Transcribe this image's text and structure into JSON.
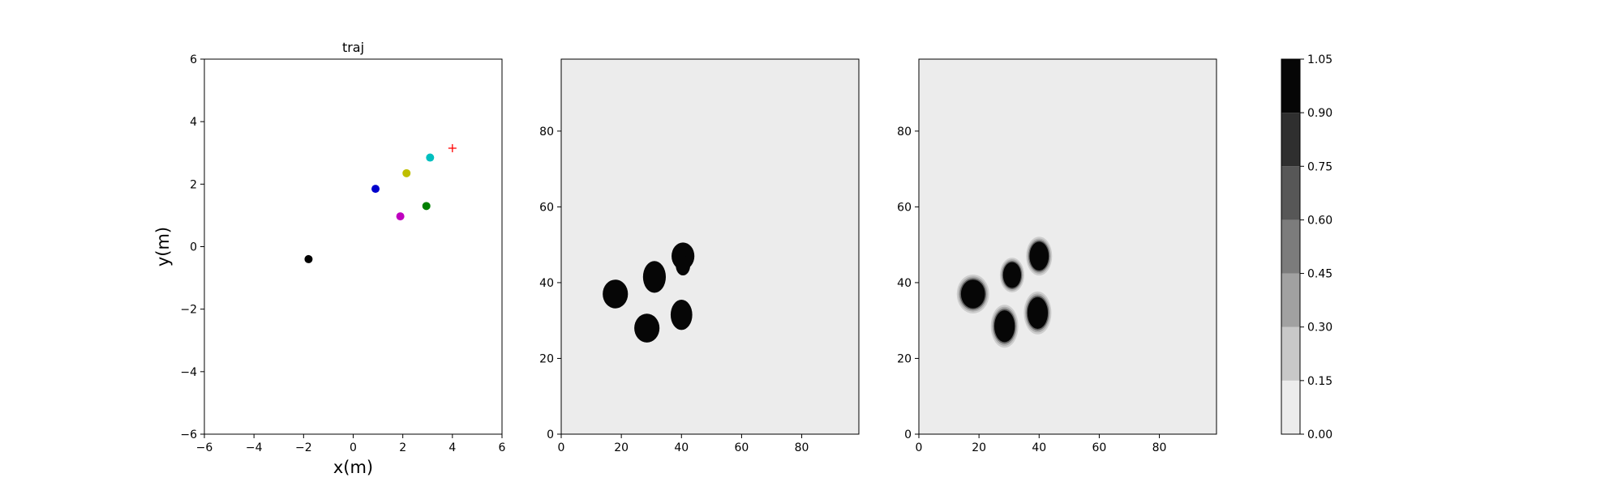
{
  "chart_data": [
    {
      "type": "scatter",
      "title": "traj",
      "xlabel": "x(m)",
      "ylabel": "y(m)",
      "xlim": [
        -6,
        6
      ],
      "ylim": [
        -6,
        6
      ],
      "xticks": [
        -6,
        -4,
        -2,
        0,
        2,
        4,
        6
      ],
      "yticks": [
        -6,
        -4,
        -2,
        0,
        2,
        4,
        6
      ],
      "xtick_labels": [
        "−6",
        "−4",
        "−2",
        "0",
        "2",
        "4",
        "6"
      ],
      "ytick_labels": [
        "−6",
        "−4",
        "−2",
        "0",
        "2",
        "4",
        "6"
      ],
      "grid": false,
      "points": [
        {
          "x": -1.8,
          "y": -0.4,
          "color": "#000000",
          "marker": "circle"
        },
        {
          "x": 0.9,
          "y": 1.85,
          "color": "#0000cc",
          "marker": "circle"
        },
        {
          "x": 2.15,
          "y": 2.35,
          "color": "#bfbf00",
          "marker": "circle"
        },
        {
          "x": 3.1,
          "y": 2.85,
          "color": "#00bfbf",
          "marker": "circle"
        },
        {
          "x": 1.9,
          "y": 0.97,
          "color": "#bf00bf",
          "marker": "circle"
        },
        {
          "x": 2.95,
          "y": 1.3,
          "color": "#008000",
          "marker": "circle"
        },
        {
          "x": 4.0,
          "y": 3.15,
          "color": "#ff0000",
          "marker": "plus"
        }
      ]
    },
    {
      "type": "heatmap",
      "title": "",
      "xlim": [
        0,
        99
      ],
      "ylim": [
        0,
        99
      ],
      "xticks": [
        0,
        20,
        40,
        60,
        80
      ],
      "yticks": [
        0,
        20,
        40,
        60,
        80
      ],
      "xtick_labels": [
        "0",
        "20",
        "40",
        "60",
        "80"
      ],
      "ytick_labels": [
        "0",
        "20",
        "40",
        "60",
        "80"
      ],
      "background_value": 0.05,
      "blobs": [
        {
          "x": 18,
          "y": 37,
          "rx": 4.2,
          "ry": 3.8,
          "value": 1.0,
          "blur": 0
        },
        {
          "x": 31,
          "y": 41.5,
          "rx": 3.8,
          "ry": 4.2,
          "value": 1.0,
          "blur": 0
        },
        {
          "x": 28.5,
          "y": 28,
          "rx": 4.2,
          "ry": 3.8,
          "value": 1.0,
          "blur": 0
        },
        {
          "x": 40,
          "y": 31.5,
          "rx": 3.6,
          "ry": 4.0,
          "value": 1.0,
          "blur": 0
        },
        {
          "x": 40.5,
          "y": 47,
          "rx": 3.8,
          "ry": 3.6,
          "value": 1.0,
          "blur": 0
        },
        {
          "x": 40.5,
          "y": 44.5,
          "rx": 2.4,
          "ry": 2.6,
          "value": 1.0,
          "blur": 0
        }
      ]
    },
    {
      "type": "heatmap",
      "title": "",
      "xlim": [
        0,
        99
      ],
      "ylim": [
        0,
        99
      ],
      "xticks": [
        0,
        20,
        40,
        60,
        80
      ],
      "yticks": [
        0,
        20,
        40,
        60,
        80
      ],
      "xtick_labels": [
        "0",
        "20",
        "40",
        "60",
        "80"
      ],
      "ytick_labels": [
        "0",
        "20",
        "40",
        "60",
        "80"
      ],
      "background_value": 0.05,
      "blobs": [
        {
          "x": 18,
          "y": 37,
          "rx": 4.0,
          "ry": 3.8,
          "value": 1.0,
          "blur": 0.6
        },
        {
          "x": 31,
          "y": 42,
          "rx": 3.0,
          "ry": 3.4,
          "value": 1.0,
          "blur": 0.8
        },
        {
          "x": 28.5,
          "y": 28.5,
          "rx": 3.4,
          "ry": 4.2,
          "value": 1.0,
          "blur": 0.8
        },
        {
          "x": 39.5,
          "y": 32,
          "rx": 3.4,
          "ry": 4.2,
          "value": 1.0,
          "blur": 0.6
        },
        {
          "x": 40,
          "y": 47,
          "rx": 3.2,
          "ry": 3.8,
          "value": 1.0,
          "blur": 0.6
        }
      ]
    }
  ],
  "colorbar": {
    "vmin": 0.0,
    "vmax": 1.05,
    "ticks": [
      0.0,
      0.15,
      0.3,
      0.45,
      0.6,
      0.75,
      0.9,
      1.05
    ],
    "tick_labels": [
      "0.00",
      "0.15",
      "0.30",
      "0.45",
      "0.60",
      "0.75",
      "0.90",
      "1.05"
    ],
    "levels": [
      {
        "from": 0.0,
        "to": 0.15,
        "color": "#ececec"
      },
      {
        "from": 0.15,
        "to": 0.3,
        "color": "#c8c8c8"
      },
      {
        "from": 0.3,
        "to": 0.45,
        "color": "#a1a1a1"
      },
      {
        "from": 0.45,
        "to": 0.6,
        "color": "#7c7c7c"
      },
      {
        "from": 0.6,
        "to": 0.75,
        "color": "#575757"
      },
      {
        "from": 0.75,
        "to": 0.9,
        "color": "#2f2f2f"
      },
      {
        "from": 0.9,
        "to": 1.05,
        "color": "#060606"
      }
    ]
  }
}
